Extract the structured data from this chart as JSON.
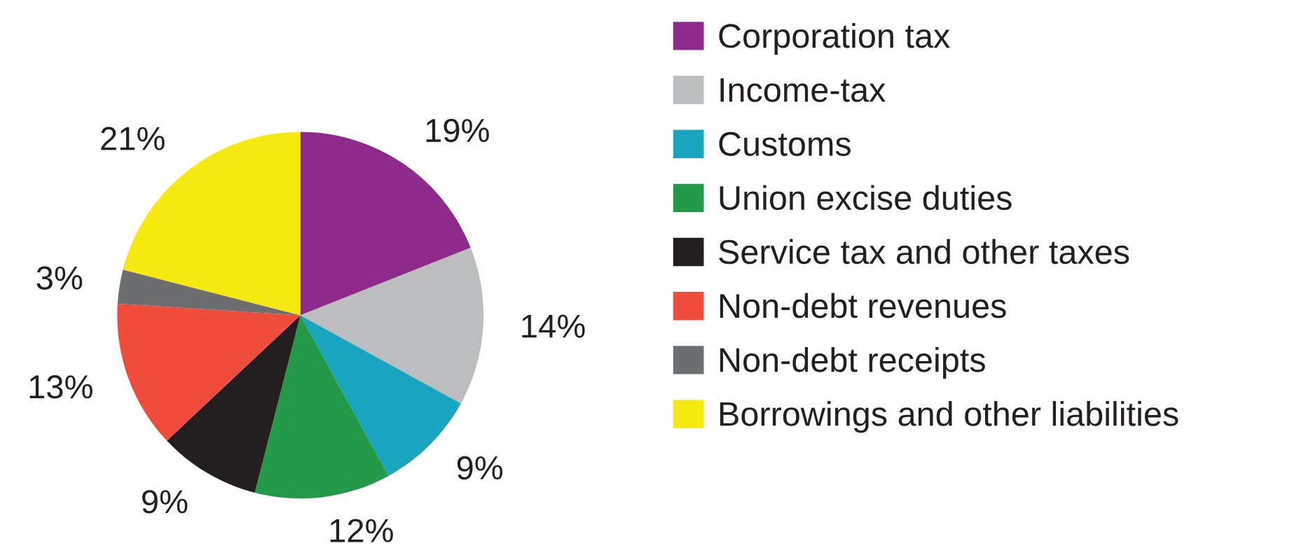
{
  "chart_data": {
    "type": "pie",
    "categories": [
      "Corporation tax",
      "Income-tax",
      "Customs",
      "Union excise duties",
      "Service tax and other taxes",
      "Non-debt revenues",
      "Non-debt receipts",
      "Borrowings and other liabilities"
    ],
    "values": [
      19,
      14,
      9,
      12,
      9,
      13,
      3,
      21
    ],
    "colors": [
      "#8e2a8c",
      "#bcbdbf",
      "#19a5c0",
      "#229a4a",
      "#231f20",
      "#ef4c3c",
      "#6d6e70",
      "#f5e90f"
    ],
    "value_labels": [
      "19%",
      "14%",
      "9%",
      "12%",
      "9%",
      "13%",
      "3%",
      "21%"
    ],
    "legend": "right"
  }
}
